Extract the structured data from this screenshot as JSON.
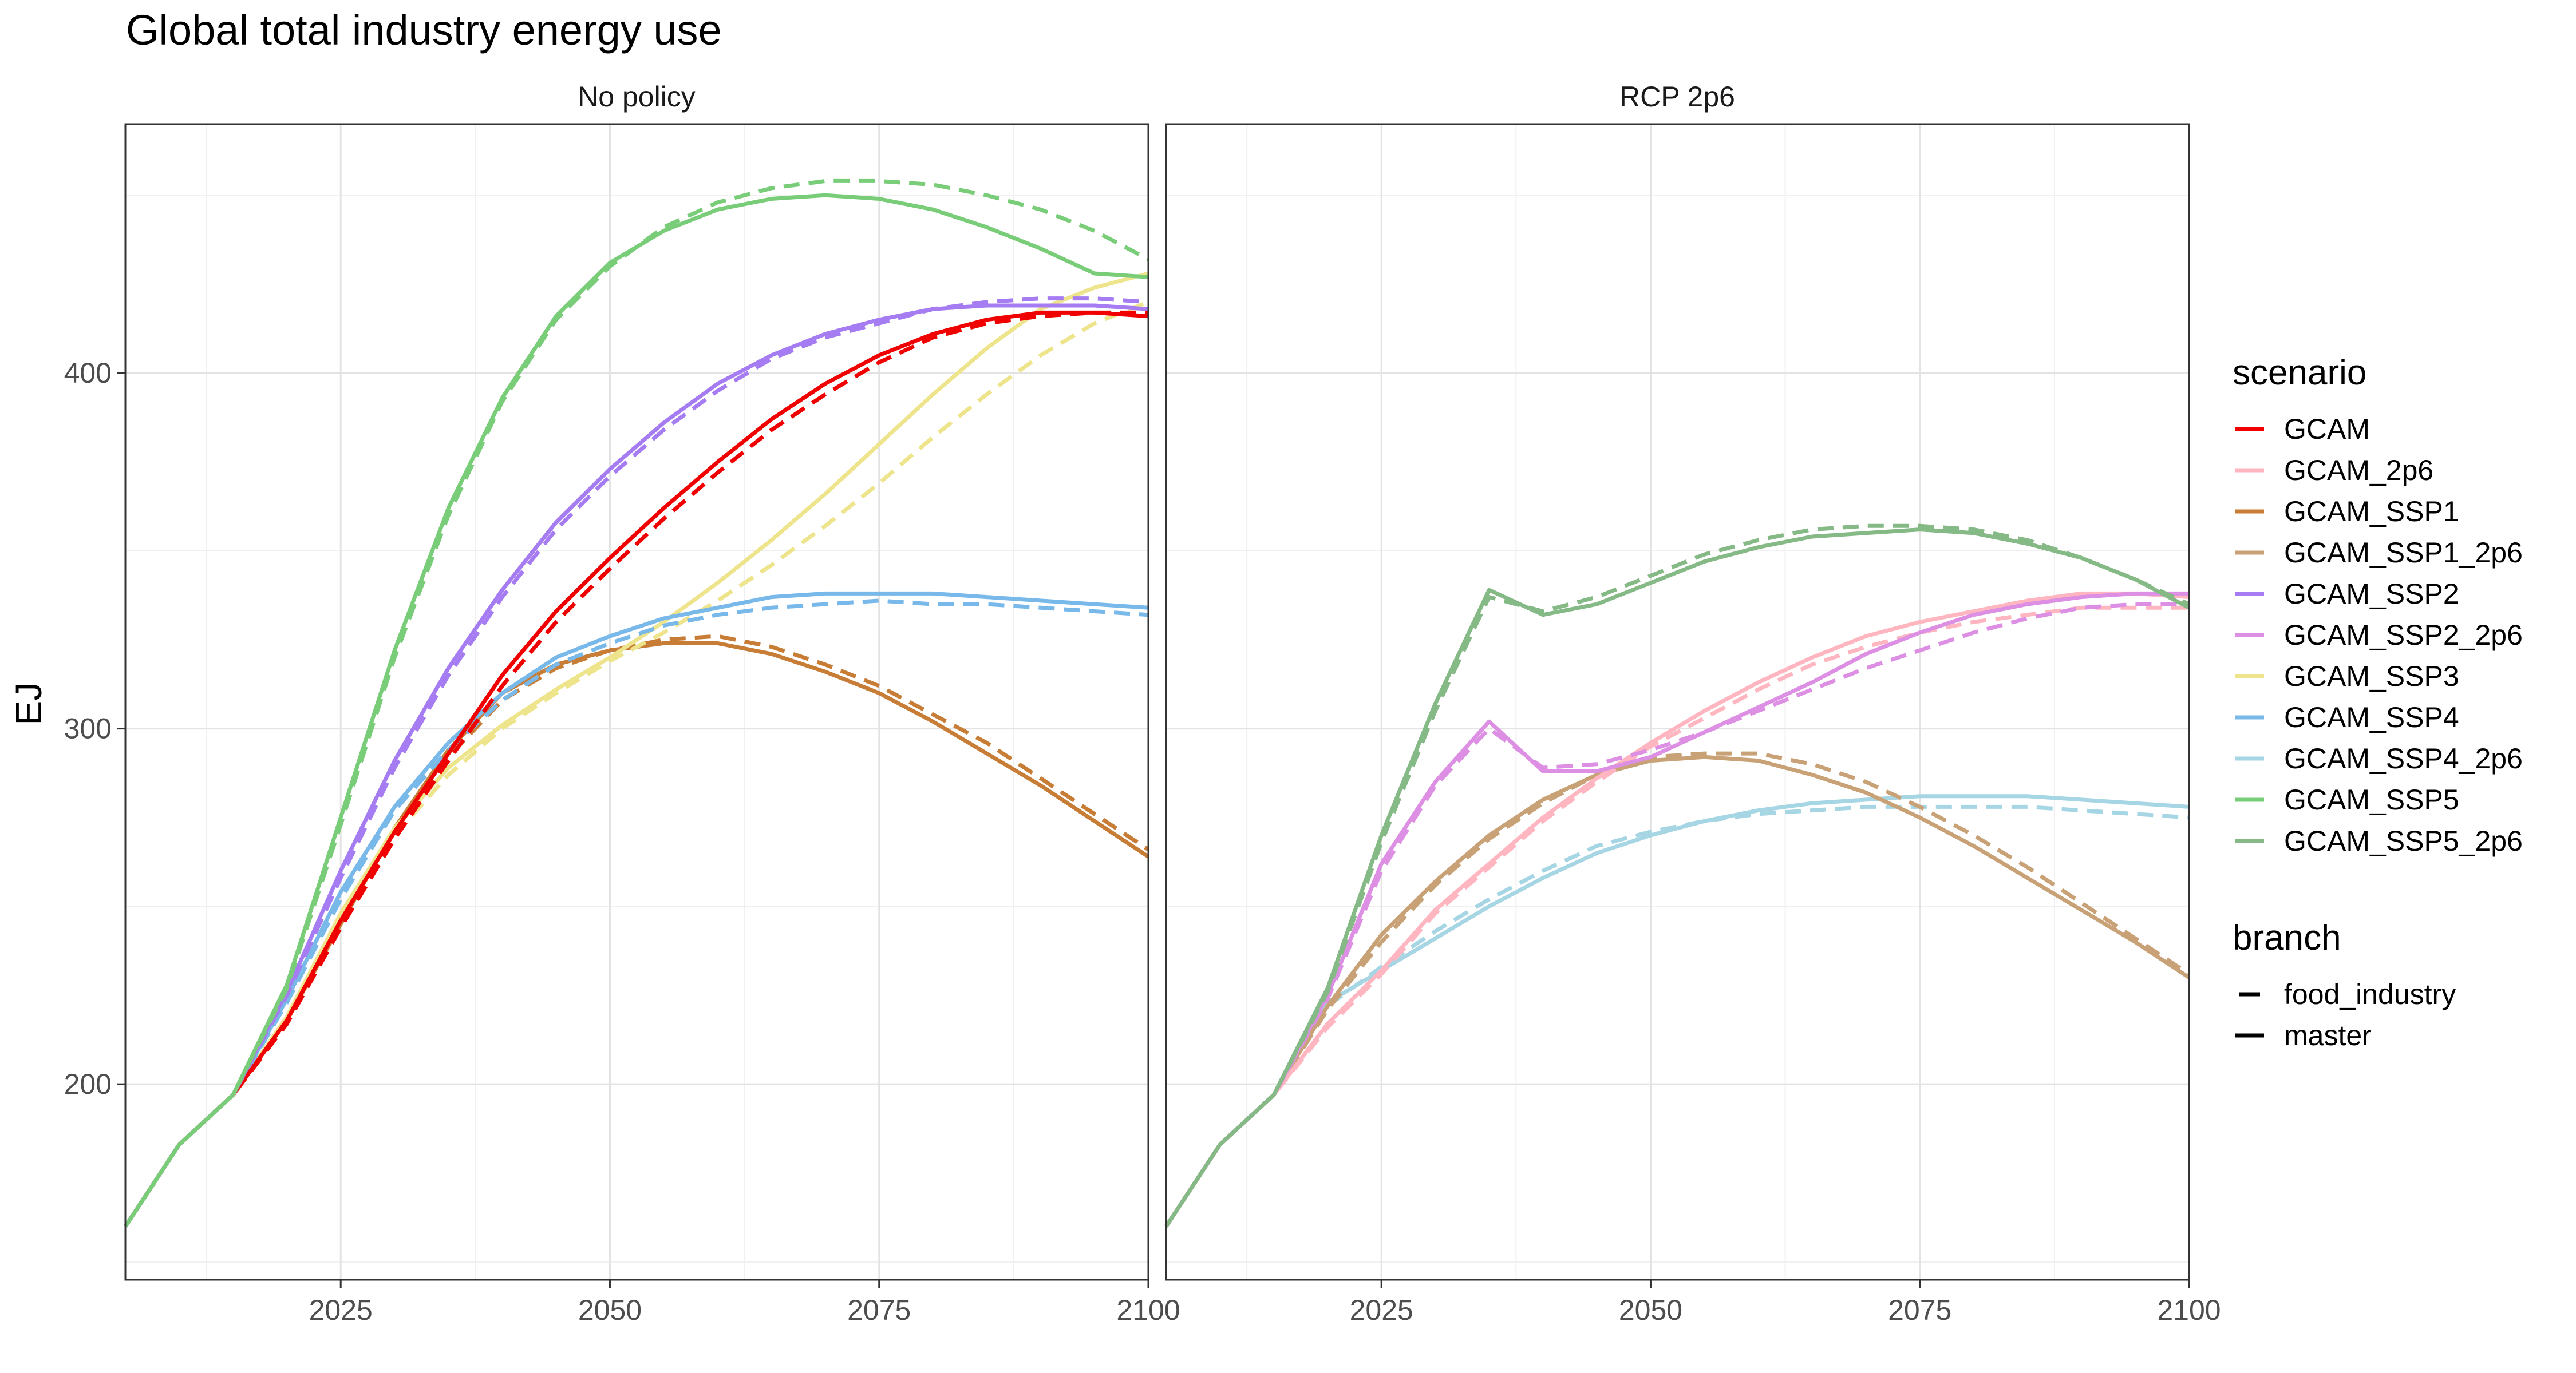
{
  "chart_data": {
    "type": "line",
    "title": "Global total industry energy use",
    "ylabel": "EJ",
    "xlabel": "",
    "xlim": [
      2005,
      2100
    ],
    "ylim": [
      145,
      470
    ],
    "x_ticks": [
      2025,
      2050,
      2075,
      2100
    ],
    "x_tick_labels": [
      "2025",
      "2050",
      "2075",
      "2100"
    ],
    "y_ticks": [
      200,
      300,
      400
    ],
    "y_tick_labels": [
      "200",
      "300",
      "400"
    ],
    "grid": true,
    "legend_position": "right",
    "x": [
      2005,
      2010,
      2015,
      2020,
      2025,
      2030,
      2035,
      2040,
      2045,
      2050,
      2055,
      2060,
      2065,
      2070,
      2075,
      2080,
      2085,
      2090,
      2095,
      2100
    ],
    "scenario_legend": {
      "title": "scenario",
      "items": [
        {
          "name": "GCAM",
          "color": "#f00000"
        },
        {
          "name": "GCAM_2p6",
          "color": "#ffb6c1"
        },
        {
          "name": "GCAM_SSP1",
          "color": "#c87d37"
        },
        {
          "name": "GCAM_SSP1_2p6",
          "color": "#c8a276"
        },
        {
          "name": "GCAM_SSP2",
          "color": "#a57cf2"
        },
        {
          "name": "GCAM_SSP2_2p6",
          "color": "#dd8fe3"
        },
        {
          "name": "GCAM_SSP3",
          "color": "#eee48c"
        },
        {
          "name": "GCAM_SSP4",
          "color": "#78b9ea"
        },
        {
          "name": "GCAM_SSP4_2p6",
          "color": "#a6d5e3"
        },
        {
          "name": "GCAM_SSP5",
          "color": "#79cd79"
        },
        {
          "name": "GCAM_SSP5_2p6",
          "color": "#85b985"
        }
      ]
    },
    "branch_legend": {
      "title": "branch",
      "items": [
        {
          "name": "food_industry",
          "dash": "dashed"
        },
        {
          "name": "master",
          "dash": "solid"
        }
      ]
    },
    "panels": [
      {
        "title": "No policy",
        "series": [
          {
            "scenario": "GCAM_SSP1",
            "branch": "master",
            "values": [
              160,
              183,
              197,
              218,
              245,
              272,
              294,
              310,
              318,
              322,
              324,
              324,
              321,
              316,
              310,
              302,
              293,
              284,
              274,
              264
            ]
          },
          {
            "scenario": "GCAM_SSP1",
            "branch": "food_industry",
            "values": [
              160,
              183,
              197,
              217,
              244,
              270,
              292,
              308,
              317,
              322,
              325,
              326,
              323,
              318,
              312,
              304,
              296,
              286,
              276,
              266
            ]
          },
          {
            "scenario": "GCAM_SSP3",
            "branch": "master",
            "values": [
              160,
              183,
              197,
              219,
              248,
              272,
              289,
              301,
              311,
              320,
              330,
              341,
              353,
              366,
              380,
              394,
              407,
              418,
              424,
              428
            ]
          },
          {
            "scenario": "GCAM_SSP3",
            "branch": "food_industry",
            "values": [
              160,
              183,
              197,
              218,
              246,
              270,
              287,
              300,
              310,
              319,
              327,
              336,
              346,
              357,
              369,
              382,
              394,
              405,
              414,
              420
            ]
          },
          {
            "scenario": "GCAM_SSP4",
            "branch": "master",
            "values": [
              160,
              183,
              197,
              224,
              254,
              278,
              296,
              310,
              320,
              326,
              331,
              334,
              337,
              338,
              338,
              338,
              337,
              336,
              335,
              334
            ]
          },
          {
            "scenario": "GCAM_SSP4",
            "branch": "food_industry",
            "values": [
              160,
              183,
              197,
              223,
              252,
              277,
              294,
              308,
              318,
              324,
              329,
              332,
              334,
              335,
              336,
              335,
              335,
              334,
              333,
              332
            ]
          },
          {
            "scenario": "GCAM",
            "branch": "master",
            "values": [
              160,
              183,
              197,
              218,
              246,
              271,
              293,
              315,
              333,
              348,
              362,
              375,
              387,
              397,
              405,
              411,
              415,
              417,
              417,
              416
            ]
          },
          {
            "scenario": "GCAM",
            "branch": "food_industry",
            "values": [
              160,
              183,
              197,
              217,
              244,
              269,
              291,
              312,
              330,
              345,
              359,
              372,
              384,
              394,
              403,
              410,
              414,
              416,
              417,
              417
            ]
          },
          {
            "scenario": "GCAM_SSP2",
            "branch": "master",
            "values": [
              160,
              183,
              197,
              226,
              260,
              291,
              317,
              339,
              358,
              373,
              386,
              397,
              405,
              411,
              415,
              418,
              419,
              419,
              419,
              418
            ]
          },
          {
            "scenario": "GCAM_SSP2",
            "branch": "food_industry",
            "values": [
              160,
              183,
              197,
              225,
              258,
              289,
              315,
              337,
              356,
              371,
              384,
              395,
              404,
              410,
              414,
              418,
              420,
              421,
              421,
              420
            ]
          },
          {
            "scenario": "GCAM_SSP5",
            "branch": "master",
            "values": [
              160,
              183,
              197,
              228,
              275,
              322,
              362,
              393,
              416,
              431,
              440,
              446,
              449,
              450,
              449,
              446,
              441,
              435,
              428,
              427
            ]
          },
          {
            "scenario": "GCAM_SSP5",
            "branch": "food_industry",
            "values": [
              160,
              183,
              197,
              227,
              273,
              320,
              360,
              392,
              415,
              430,
              441,
              448,
              452,
              454,
              454,
              453,
              450,
              446,
              440,
              432
            ]
          }
        ]
      },
      {
        "title": "RCP 2p6",
        "series": [
          {
            "scenario": "GCAM_SSP4_2p6",
            "branch": "master",
            "values": [
              160,
              183,
              197,
              223,
              232,
              241,
              250,
              258,
              265,
              270,
              274,
              277,
              279,
              280,
              281,
              281,
              281,
              280,
              279,
              278
            ]
          },
          {
            "scenario": "GCAM_SSP4_2p6",
            "branch": "food_industry",
            "values": [
              160,
              183,
              197,
              222,
              233,
              243,
              252,
              260,
              267,
              271,
              274,
              276,
              277,
              278,
              278,
              278,
              278,
              277,
              276,
              275
            ]
          },
          {
            "scenario": "GCAM_SSP1_2p6",
            "branch": "master",
            "values": [
              160,
              183,
              197,
              222,
              242,
              257,
              270,
              280,
              287,
              291,
              292,
              291,
              287,
              282,
              275,
              267,
              258,
              249,
              240,
              230
            ]
          },
          {
            "scenario": "GCAM_SSP1_2p6",
            "branch": "food_industry",
            "values": [
              160,
              183,
              197,
              221,
              240,
              256,
              269,
              279,
              287,
              292,
              293,
              293,
              290,
              285,
              278,
              270,
              261,
              251,
              241,
              231
            ]
          },
          {
            "scenario": "GCAM_2p6",
            "branch": "master",
            "values": [
              160,
              183,
              197,
              217,
              232,
              249,
              262,
              275,
              286,
              296,
              305,
              313,
              320,
              326,
              330,
              333,
              336,
              338,
              338,
              337
            ]
          },
          {
            "scenario": "GCAM_2p6",
            "branch": "food_industry",
            "values": [
              160,
              183,
              197,
              216,
              231,
              248,
              261,
              274,
              285,
              295,
              303,
              311,
              318,
              323,
              327,
              330,
              332,
              334,
              334,
              334
            ]
          },
          {
            "scenario": "GCAM_SSP2_2p6",
            "branch": "master",
            "values": [
              160,
              183,
              197,
              225,
              262,
              285,
              302,
              288,
              288,
              292,
              299,
              306,
              313,
              321,
              327,
              332,
              335,
              337,
              338,
              338
            ]
          },
          {
            "scenario": "GCAM_SSP2_2p6",
            "branch": "food_industry",
            "values": [
              160,
              183,
              197,
              224,
              260,
              284,
              300,
              289,
              290,
              294,
              299,
              305,
              311,
              317,
              322,
              327,
              331,
              334,
              335,
              335
            ]
          },
          {
            "scenario": "GCAM_SSP5_2p6",
            "branch": "master",
            "values": [
              160,
              183,
              197,
              227,
              270,
              307,
              339,
              332,
              335,
              341,
              347,
              351,
              354,
              355,
              356,
              355,
              352,
              348,
              342,
              334
            ]
          },
          {
            "scenario": "GCAM_SSP5_2p6",
            "branch": "food_industry",
            "values": [
              160,
              183,
              197,
              226,
              268,
              305,
              337,
              333,
              337,
              343,
              349,
              353,
              356,
              357,
              357,
              356,
              353,
              348,
              342,
              335
            ]
          }
        ]
      }
    ]
  }
}
